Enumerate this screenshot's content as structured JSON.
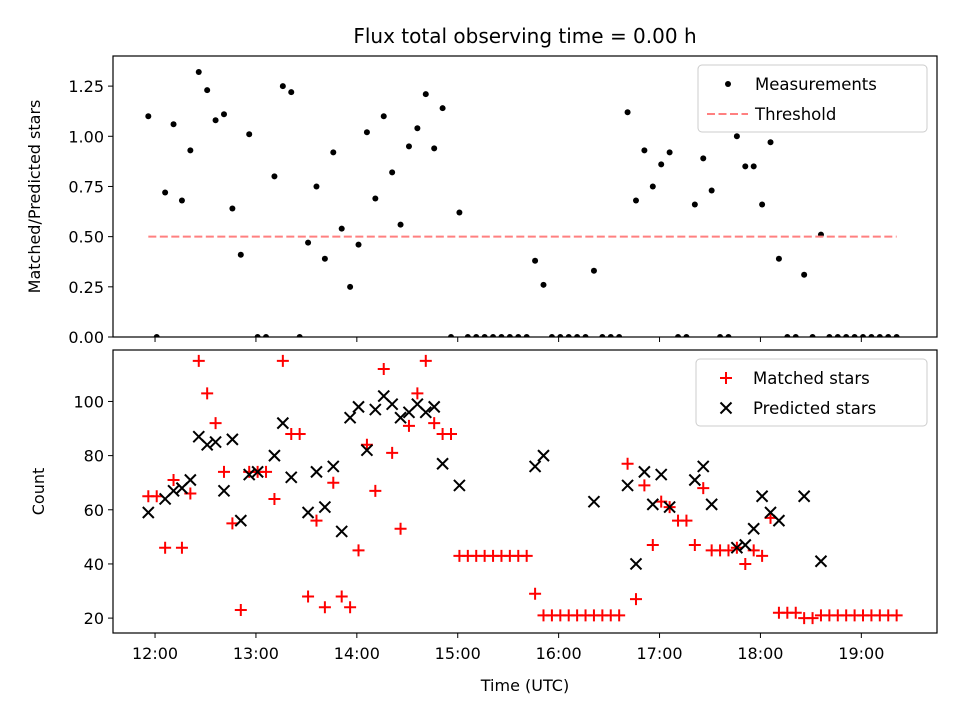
{
  "chart_data": [
    {
      "type": "scatter",
      "title": "Flux total observing time = 0.00 h",
      "xlabel": "",
      "ylabel": "Matched/Predicted stars",
      "xlim": [
        "11:35",
        "19:45"
      ],
      "ylim": [
        0,
        1.4
      ],
      "yticks": [
        "0.00",
        "0.25",
        "0.50",
        "0.75",
        "1.00",
        "1.25"
      ],
      "xticks": [
        "12:00",
        "13:00",
        "14:00",
        "15:00",
        "16:00",
        "17:00",
        "18:00",
        "19:00"
      ],
      "grid": false,
      "legend_position": "top-right",
      "series": [
        {
          "name": "Measurements",
          "style": "dot",
          "color": "#000000",
          "points": [
            [
              "11:56",
              1.1
            ],
            [
              "12:01",
              0.0
            ],
            [
              "12:06",
              0.72
            ],
            [
              "12:11",
              1.06
            ],
            [
              "12:16",
              0.68
            ],
            [
              "12:21",
              0.93
            ],
            [
              "12:26",
              1.32
            ],
            [
              "12:31",
              1.23
            ],
            [
              "12:36",
              1.08
            ],
            [
              "12:41",
              1.11
            ],
            [
              "12:46",
              0.64
            ],
            [
              "12:51",
              0.41
            ],
            [
              "12:56",
              1.01
            ],
            [
              "13:01",
              0.0
            ],
            [
              "13:06",
              0.0
            ],
            [
              "13:11",
              0.8
            ],
            [
              "13:16",
              1.25
            ],
            [
              "13:21",
              1.22
            ],
            [
              "13:26",
              0.0
            ],
            [
              "13:31",
              0.47
            ],
            [
              "13:36",
              0.75
            ],
            [
              "13:41",
              0.39
            ],
            [
              "13:46",
              0.92
            ],
            [
              "13:51",
              0.54
            ],
            [
              "13:56",
              0.25
            ],
            [
              "14:01",
              0.46
            ],
            [
              "14:06",
              1.02
            ],
            [
              "14:11",
              0.69
            ],
            [
              "14:16",
              1.1
            ],
            [
              "14:21",
              0.82
            ],
            [
              "14:26",
              0.56
            ],
            [
              "14:31",
              0.95
            ],
            [
              "14:36",
              1.04
            ],
            [
              "14:41",
              1.21
            ],
            [
              "14:46",
              0.94
            ],
            [
              "14:51",
              1.14
            ],
            [
              "14:56",
              0.0
            ],
            [
              "15:01",
              0.62
            ],
            [
              "15:06",
              0.0
            ],
            [
              "15:11",
              0.0
            ],
            [
              "15:16",
              0.0
            ],
            [
              "15:21",
              0.0
            ],
            [
              "15:26",
              0.0
            ],
            [
              "15:31",
              0.0
            ],
            [
              "15:36",
              0.0
            ],
            [
              "15:41",
              0.0
            ],
            [
              "15:46",
              0.38
            ],
            [
              "15:51",
              0.26
            ],
            [
              "15:56",
              0.0
            ],
            [
              "16:01",
              0.0
            ],
            [
              "16:06",
              0.0
            ],
            [
              "16:11",
              0.0
            ],
            [
              "16:16",
              0.0
            ],
            [
              "16:21",
              0.33
            ],
            [
              "16:26",
              0.0
            ],
            [
              "16:31",
              0.0
            ],
            [
              "16:36",
              0.0
            ],
            [
              "16:41",
              1.12
            ],
            [
              "16:46",
              0.68
            ],
            [
              "16:51",
              0.93
            ],
            [
              "16:56",
              0.75
            ],
            [
              "17:01",
              0.86
            ],
            [
              "17:06",
              0.92
            ],
            [
              "17:11",
              0.0
            ],
            [
              "17:16",
              0.0
            ],
            [
              "17:21",
              0.66
            ],
            [
              "17:26",
              0.89
            ],
            [
              "17:31",
              0.73
            ],
            [
              "17:36",
              0.0
            ],
            [
              "17:41",
              0.0
            ],
            [
              "17:46",
              1.0
            ],
            [
              "17:51",
              0.85
            ],
            [
              "17:56",
              0.85
            ],
            [
              "18:01",
              0.66
            ],
            [
              "18:06",
              0.97
            ],
            [
              "18:11",
              0.39
            ],
            [
              "18:16",
              0.0
            ],
            [
              "18:21",
              0.0
            ],
            [
              "18:26",
              0.31
            ],
            [
              "18:31",
              0.0
            ],
            [
              "18:36",
              0.51
            ],
            [
              "18:41",
              0.0
            ],
            [
              "18:46",
              0.0
            ],
            [
              "18:51",
              0.0
            ],
            [
              "18:56",
              0.0
            ],
            [
              "19:01",
              0.0
            ],
            [
              "19:06",
              0.0
            ],
            [
              "19:11",
              0.0
            ],
            [
              "19:16",
              0.0
            ],
            [
              "19:21",
              0.0
            ]
          ]
        },
        {
          "name": "Threshold",
          "style": "dashed-line",
          "color": "#ff8080",
          "points": [
            [
              "11:56",
              0.5
            ],
            [
              "19:21",
              0.5
            ]
          ]
        }
      ]
    },
    {
      "type": "scatter",
      "title": "",
      "xlabel": "Time (UTC)",
      "ylabel": "Count",
      "xlim": [
        "11:35",
        "19:45"
      ],
      "ylim": [
        14.5,
        119
      ],
      "yticks": [
        "20",
        "40",
        "60",
        "80",
        "100"
      ],
      "xticks": [
        "12:00",
        "13:00",
        "14:00",
        "15:00",
        "16:00",
        "17:00",
        "18:00",
        "19:00"
      ],
      "grid": false,
      "legend_position": "top-right",
      "series": [
        {
          "name": "Matched stars",
          "style": "plus",
          "color": "#ff0000",
          "points": [
            [
              "11:56",
              65
            ],
            [
              "12:01",
              65
            ],
            [
              "12:06",
              46
            ],
            [
              "12:11",
              71
            ],
            [
              "12:16",
              46
            ],
            [
              "12:21",
              66
            ],
            [
              "12:26",
              115
            ],
            [
              "12:31",
              103
            ],
            [
              "12:36",
              92
            ],
            [
              "12:41",
              74
            ],
            [
              "12:46",
              55
            ],
            [
              "12:51",
              23
            ],
            [
              "12:56",
              74
            ],
            [
              "13:01",
              74
            ],
            [
              "13:06",
              74
            ],
            [
              "13:11",
              64
            ],
            [
              "13:16",
              115
            ],
            [
              "13:21",
              88
            ],
            [
              "13:26",
              88
            ],
            [
              "13:31",
              28
            ],
            [
              "13:36",
              56
            ],
            [
              "13:41",
              24
            ],
            [
              "13:46",
              70
            ],
            [
              "13:51",
              28
            ],
            [
              "13:56",
              24
            ],
            [
              "14:01",
              45
            ],
            [
              "14:06",
              84
            ],
            [
              "14:11",
              67
            ],
            [
              "14:16",
              112
            ],
            [
              "14:21",
              81
            ],
            [
              "14:26",
              53
            ],
            [
              "14:31",
              91
            ],
            [
              "14:36",
              103
            ],
            [
              "14:41",
              115
            ],
            [
              "14:46",
              92
            ],
            [
              "14:51",
              88
            ],
            [
              "14:56",
              88
            ],
            [
              "15:01",
              43
            ],
            [
              "15:06",
              43
            ],
            [
              "15:11",
              43
            ],
            [
              "15:16",
              43
            ],
            [
              "15:21",
              43
            ],
            [
              "15:26",
              43
            ],
            [
              "15:31",
              43
            ],
            [
              "15:36",
              43
            ],
            [
              "15:41",
              43
            ],
            [
              "15:46",
              29
            ],
            [
              "15:51",
              21
            ],
            [
              "15:56",
              21
            ],
            [
              "16:01",
              21
            ],
            [
              "16:06",
              21
            ],
            [
              "16:11",
              21
            ],
            [
              "16:16",
              21
            ],
            [
              "16:21",
              21
            ],
            [
              "16:26",
              21
            ],
            [
              "16:31",
              21
            ],
            [
              "16:36",
              21
            ],
            [
              "16:41",
              77
            ],
            [
              "16:46",
              27
            ],
            [
              "16:51",
              69
            ],
            [
              "16:56",
              47
            ],
            [
              "17:01",
              63
            ],
            [
              "17:06",
              61
            ],
            [
              "17:11",
              56
            ],
            [
              "17:16",
              56
            ],
            [
              "17:21",
              47
            ],
            [
              "17:26",
              68
            ],
            [
              "17:31",
              45
            ],
            [
              "17:36",
              45
            ],
            [
              "17:41",
              45
            ],
            [
              "17:46",
              46
            ],
            [
              "17:51",
              40
            ],
            [
              "17:56",
              45
            ],
            [
              "18:01",
              43
            ],
            [
              "18:06",
              57
            ],
            [
              "18:11",
              22
            ],
            [
              "18:16",
              22
            ],
            [
              "18:21",
              22
            ],
            [
              "18:26",
              20
            ],
            [
              "18:31",
              20
            ],
            [
              "18:36",
              21
            ],
            [
              "18:41",
              21
            ],
            [
              "18:46",
              21
            ],
            [
              "18:51",
              21
            ],
            [
              "18:56",
              21
            ],
            [
              "19:01",
              21
            ],
            [
              "19:06",
              21
            ],
            [
              "19:11",
              21
            ],
            [
              "19:16",
              21
            ],
            [
              "19:21",
              21
            ]
          ]
        },
        {
          "name": "Predicted stars",
          "style": "x",
          "color": "#000000",
          "points": [
            [
              "11:56",
              59
            ],
            [
              "12:06",
              64
            ],
            [
              "12:11",
              67
            ],
            [
              "12:16",
              68
            ],
            [
              "12:21",
              71
            ],
            [
              "12:26",
              87
            ],
            [
              "12:31",
              84
            ],
            [
              "12:36",
              85
            ],
            [
              "12:41",
              67
            ],
            [
              "12:46",
              86
            ],
            [
              "12:51",
              56
            ],
            [
              "12:56",
              73
            ],
            [
              "13:01",
              74
            ],
            [
              "13:11",
              80
            ],
            [
              "13:16",
              92
            ],
            [
              "13:21",
              72
            ],
            [
              "13:31",
              59
            ],
            [
              "13:36",
              74
            ],
            [
              "13:41",
              61
            ],
            [
              "13:46",
              76
            ],
            [
              "13:51",
              52
            ],
            [
              "13:56",
              94
            ],
            [
              "14:01",
              98
            ],
            [
              "14:06",
              82
            ],
            [
              "14:11",
              97
            ],
            [
              "14:16",
              102
            ],
            [
              "14:21",
              99
            ],
            [
              "14:26",
              94
            ],
            [
              "14:31",
              96
            ],
            [
              "14:36",
              99
            ],
            [
              "14:41",
              96
            ],
            [
              "14:46",
              98
            ],
            [
              "14:51",
              77
            ],
            [
              "15:01",
              69
            ],
            [
              "15:46",
              76
            ],
            [
              "15:51",
              80
            ],
            [
              "16:21",
              63
            ],
            [
              "16:41",
              69
            ],
            [
              "16:46",
              40
            ],
            [
              "16:51",
              74
            ],
            [
              "16:56",
              62
            ],
            [
              "17:01",
              73
            ],
            [
              "17:06",
              61
            ],
            [
              "17:21",
              71
            ],
            [
              "17:26",
              76
            ],
            [
              "17:31",
              62
            ],
            [
              "17:46",
              46
            ],
            [
              "17:51",
              47
            ],
            [
              "17:56",
              53
            ],
            [
              "18:01",
              65
            ],
            [
              "18:06",
              59
            ],
            [
              "18:11",
              56
            ],
            [
              "18:26",
              65
            ],
            [
              "18:36",
              41
            ]
          ]
        }
      ]
    }
  ]
}
